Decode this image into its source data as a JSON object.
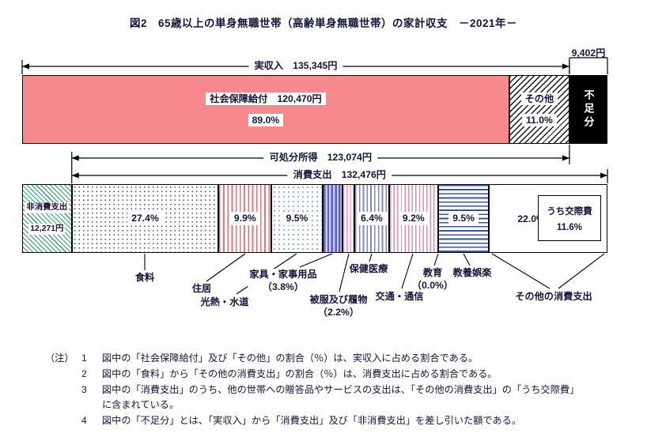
{
  "title": "図2　65歳以上の単身無職世帯（高齢単身無職世帯）の家計収支　－2021年－",
  "chart_data": {
    "type": "bar",
    "orientation": "horizontal-stacked",
    "unit": "円/月",
    "total_yen": 144747,
    "income": {
      "span_label": "実収入　135,345円",
      "total_value": 135345,
      "deficit_label": "9,402円",
      "segments": [
        {
          "id": "shakai-hosho",
          "label": "社会保障給付　120,470円",
          "pct_label": "89.0%",
          "value": 120470,
          "pct": 89.0,
          "pattern": "salmon"
        },
        {
          "id": "sonota",
          "label": "その他",
          "pct_label": "11.0%",
          "value": 14875,
          "pct": 11.0,
          "pattern": "hatch"
        },
        {
          "id": "fusoku",
          "label": "不足分",
          "value": 9402,
          "pattern": "black",
          "text_vertical": true
        }
      ]
    },
    "disposable_income": {
      "span_label": "可処分所得　123,074円",
      "value": 123074
    },
    "consumption": {
      "span_label": "消費支出　132,476円",
      "value": 132476
    },
    "expenditure": {
      "non_consumption": {
        "label": "非消費支出",
        "value_label": "12,271円",
        "value": 12271,
        "pattern": "green-diag"
      },
      "segments": [
        {
          "id": "food",
          "label": "食料",
          "pct": 27.4,
          "pct_label": "27.4%",
          "pct_in_bar": true,
          "pattern": "dots-dark"
        },
        {
          "id": "housing",
          "label": "住居",
          "pct": 9.9,
          "pct_label": "9.9%",
          "pct_in_bar": true,
          "pattern": "vstripe-red"
        },
        {
          "id": "utilities",
          "label": "光熱・水道",
          "pct": 9.5,
          "pct_label": "9.5%",
          "pct_in_bar": true,
          "pattern": "dots-blue"
        },
        {
          "id": "furniture",
          "label": "家具・家事用品",
          "pct": 3.8,
          "pct_label": "（3.8%）",
          "pct_in_bar": false,
          "pattern": "vstripe-indigo"
        },
        {
          "id": "clothing",
          "label": "被服及び履物",
          "pct": 2.2,
          "pct_label": "（2.2%）",
          "pct_in_bar": false,
          "pattern": "vstripe-pink-light"
        },
        {
          "id": "health",
          "label": "保健医療",
          "pct": 6.4,
          "pct_label": "6.4%",
          "pct_in_bar": true,
          "pattern": "vstripe-blue"
        },
        {
          "id": "transport",
          "label": "交通・通信",
          "pct": 9.2,
          "pct_label": "9.2%",
          "pct_in_bar": true,
          "pattern": "vstripe-magenta"
        },
        {
          "id": "education",
          "label": "教育",
          "pct": 0.0,
          "pct_label": "（0.0%）",
          "pct_in_bar": false,
          "pattern": "white"
        },
        {
          "id": "recreation",
          "label": "教養娯楽",
          "pct": 9.5,
          "pct_label": "9.5%",
          "pct_in_bar": true,
          "pattern": "hstripe-blue"
        },
        {
          "id": "other",
          "label": "その他の消費支出",
          "pct": 22.0,
          "pct_label": "22.0%",
          "pct_in_bar": true,
          "pattern": "white",
          "sub_box": {
            "line1": "うち交際費",
            "line2": "11.6%"
          }
        }
      ]
    }
  },
  "notes": {
    "heading": "（注）",
    "items": [
      "図中の「社会保障給付」及び「その他」の割合（％）は、実収入に占める割合である。",
      "図中の「食料」から「その他の消費支出」の割合（％）は、消費支出に占める割合である。",
      "図中の「消費支出」のうち、他の世帯への贈答品やサービスの支出は、「その他の消費支出」の「うち交際費」に含まれている。",
      "図中の「不足分」とは、「実収入」から「消費支出」及び「非消費支出」を差し引いた額である。"
    ]
  }
}
